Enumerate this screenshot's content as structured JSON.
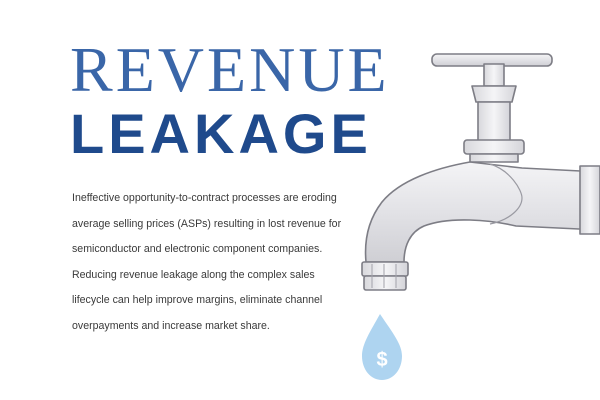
{
  "title": {
    "line1": "REVENUE",
    "line2": "LEAKAGE"
  },
  "body": {
    "text": "Ineffective opportunity-to-contract processes are eroding average selling prices (ASPs) resulting in lost revenue for semiconductor and electronic component companies. Reducing revenue leakage along the complex sales lifecycle can help improve margins, eliminate channel overpayments and increase market share."
  },
  "illustration": {
    "icon": "faucet-icon",
    "drop_icon": "water-drop-icon",
    "drop_symbol": "$",
    "drop_color": "#aed4f0",
    "faucet_color": "#e6e6ea"
  },
  "colors": {
    "title_light": "#3a66a8",
    "title_dark": "#1f4a8c",
    "text": "#3a3a3a"
  }
}
